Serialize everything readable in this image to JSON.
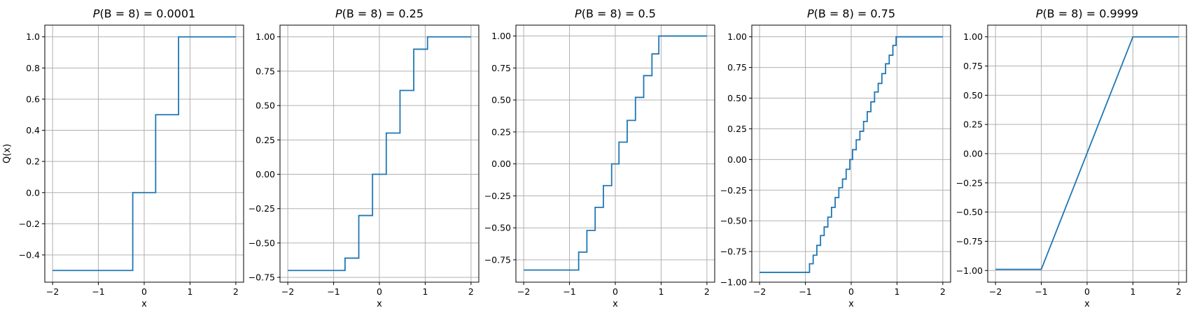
{
  "figure": {
    "ylabel": "Q(x)"
  },
  "chart_data": [
    {
      "type": "line",
      "title": {
        "prefix": "P",
        "arg": "(B = 8) = ",
        "value": "0.0001"
      },
      "xlabel": "x",
      "ylabel": "Q(x)",
      "xlim": [
        -2.17,
        2.17
      ],
      "ylim": [
        -0.575,
        1.075
      ],
      "xticks": [
        -2,
        -1,
        0,
        1,
        2
      ],
      "xtick_labels": [
        "−2",
        "−1",
        "0",
        "1",
        "2"
      ],
      "yticks": [
        -0.4,
        -0.2,
        0.0,
        0.2,
        0.4,
        0.6,
        0.8,
        1.0
      ],
      "ytick_labels": [
        "−0.4",
        "−0.2",
        "0.0",
        "0.2",
        "0.4",
        "0.6",
        "0.8",
        "1.0"
      ],
      "grid": true,
      "series": [
        {
          "color": "#1f77b4",
          "x": [
            -2,
            -0.25,
            -0.25,
            0.25,
            0.25,
            0.75,
            0.75,
            2
          ],
          "y": [
            -0.5,
            -0.5,
            0.0,
            0.0,
            0.5,
            0.5,
            1.0,
            1.0
          ]
        }
      ]
    },
    {
      "type": "line",
      "title": {
        "prefix": "P",
        "arg": "(B = 8) = ",
        "value": "0.25"
      },
      "xlabel": "x",
      "ylabel": "",
      "xlim": [
        -2.17,
        2.17
      ],
      "ylim": [
        -0.785,
        1.085
      ],
      "xticks": [
        -2,
        -1,
        0,
        1,
        2
      ],
      "xtick_labels": [
        "−2",
        "−1",
        "0",
        "1",
        "2"
      ],
      "yticks": [
        -0.75,
        -0.5,
        -0.25,
        0.0,
        0.25,
        0.5,
        0.75,
        1.0
      ],
      "ytick_labels": [
        "−0.75",
        "−0.50",
        "−0.25",
        "0.00",
        "0.25",
        "0.50",
        "0.75",
        "1.00"
      ],
      "grid": true,
      "series": [
        {
          "color": "#1f77b4",
          "x": [
            -2,
            -0.75,
            -0.75,
            -0.45,
            -0.45,
            -0.15,
            -0.15,
            0.15,
            0.15,
            0.45,
            0.45,
            0.75,
            0.75,
            1.05,
            1.05,
            2
          ],
          "y": [
            -0.7,
            -0.7,
            -0.61,
            -0.61,
            -0.3,
            -0.3,
            0.0,
            0.0,
            0.3,
            0.3,
            0.61,
            0.61,
            0.91,
            0.91,
            1.0,
            1.0
          ]
        }
      ]
    },
    {
      "type": "line",
      "title": {
        "prefix": "P",
        "arg": "(B = 8) = ",
        "value": "0.5"
      },
      "xlabel": "x",
      "ylabel": "",
      "xlim": [
        -2.17,
        2.17
      ],
      "ylim": [
        -0.925,
        1.085
      ],
      "xticks": [
        -2,
        -1,
        0,
        1,
        2
      ],
      "xtick_labels": [
        "−2",
        "−1",
        "0",
        "1",
        "2"
      ],
      "yticks": [
        -0.75,
        -0.5,
        -0.25,
        0.0,
        0.25,
        0.5,
        0.75,
        1.0
      ],
      "ytick_labels": [
        "−0.75",
        "−0.50",
        "−0.25",
        "0.00",
        "0.25",
        "0.50",
        "0.75",
        "1.00"
      ],
      "grid": true,
      "series": [
        {
          "color": "#1f77b4",
          "x": [
            -2,
            -0.8,
            -0.8,
            -0.62,
            -0.62,
            -0.44,
            -0.44,
            -0.26,
            -0.26,
            -0.08,
            -0.08,
            0.08,
            0.08,
            0.26,
            0.26,
            0.44,
            0.44,
            0.62,
            0.62,
            0.8,
            0.8,
            0.95,
            0.95,
            2
          ],
          "y": [
            -0.83,
            -0.83,
            -0.69,
            -0.69,
            -0.52,
            -0.52,
            -0.34,
            -0.34,
            -0.17,
            -0.17,
            0.0,
            0.0,
            0.17,
            0.17,
            0.34,
            0.34,
            0.52,
            0.52,
            0.69,
            0.69,
            0.86,
            0.86,
            1.0,
            1.0
          ]
        }
      ]
    },
    {
      "type": "line",
      "title": {
        "prefix": "P",
        "arg": "(B = 8) = ",
        "value": "0.75"
      },
      "xlabel": "x",
      "ylabel": "",
      "xlim": [
        -2.17,
        2.17
      ],
      "ylim": [
        -1.0,
        1.095
      ],
      "xticks": [
        -2,
        -1,
        0,
        1,
        2
      ],
      "xtick_labels": [
        "−2",
        "−1",
        "0",
        "1",
        "2"
      ],
      "yticks": [
        -1.0,
        -0.75,
        -0.5,
        -0.25,
        0.0,
        0.25,
        0.5,
        0.75,
        1.0
      ],
      "ytick_labels": [
        "−1.00",
        "−0.75",
        "−0.50",
        "−0.25",
        "0.00",
        "0.25",
        "0.50",
        "0.75",
        "1.00"
      ],
      "grid": true,
      "series": [
        {
          "color": "#1f77b4",
          "x": [
            -2,
            -0.91,
            -0.91,
            -0.83,
            -0.83,
            -0.75,
            -0.75,
            -0.67,
            -0.67,
            -0.59,
            -0.59,
            -0.51,
            -0.51,
            -0.43,
            -0.43,
            -0.35,
            -0.35,
            -0.27,
            -0.27,
            -0.19,
            -0.19,
            -0.11,
            -0.11,
            -0.03,
            -0.03,
            0.03,
            0.03,
            0.11,
            0.11,
            0.19,
            0.19,
            0.27,
            0.27,
            0.35,
            0.35,
            0.43,
            0.43,
            0.51,
            0.51,
            0.59,
            0.59,
            0.67,
            0.67,
            0.75,
            0.75,
            0.83,
            0.83,
            0.91,
            0.91,
            0.98,
            0.98,
            2
          ],
          "y": [
            -0.92,
            -0.92,
            -0.85,
            -0.85,
            -0.78,
            -0.78,
            -0.7,
            -0.7,
            -0.62,
            -0.62,
            -0.55,
            -0.55,
            -0.47,
            -0.47,
            -0.39,
            -0.39,
            -0.31,
            -0.31,
            -0.23,
            -0.23,
            -0.16,
            -0.16,
            -0.08,
            -0.08,
            0.0,
            0.0,
            0.08,
            0.08,
            0.16,
            0.16,
            0.23,
            0.23,
            0.31,
            0.31,
            0.39,
            0.39,
            0.47,
            0.47,
            0.55,
            0.55,
            0.62,
            0.62,
            0.7,
            0.7,
            0.78,
            0.78,
            0.85,
            0.85,
            0.93,
            0.93,
            1.0,
            1.0
          ]
        }
      ]
    },
    {
      "type": "line",
      "title": {
        "prefix": "P",
        "arg": "(B = 8) = ",
        "value": "0.9999"
      },
      "xlabel": "x",
      "ylabel": "",
      "xlim": [
        -2.17,
        2.17
      ],
      "ylim": [
        -1.1,
        1.1
      ],
      "xticks": [
        -2,
        -1,
        0,
        1,
        2
      ],
      "xtick_labels": [
        "−2",
        "−1",
        "0",
        "1",
        "2"
      ],
      "yticks": [
        -1.0,
        -0.75,
        -0.5,
        -0.25,
        0.0,
        0.25,
        0.5,
        0.75,
        1.0
      ],
      "ytick_labels": [
        "−1.00",
        "−0.75",
        "−0.50",
        "−0.25",
        "0.00",
        "0.25",
        "0.50",
        "0.75",
        "1.00"
      ],
      "grid": true,
      "series": [
        {
          "color": "#1f77b4",
          "x": [
            -2,
            -1,
            1,
            2
          ],
          "y": [
            -0.99,
            -0.99,
            1.0,
            1.0
          ]
        }
      ]
    }
  ]
}
